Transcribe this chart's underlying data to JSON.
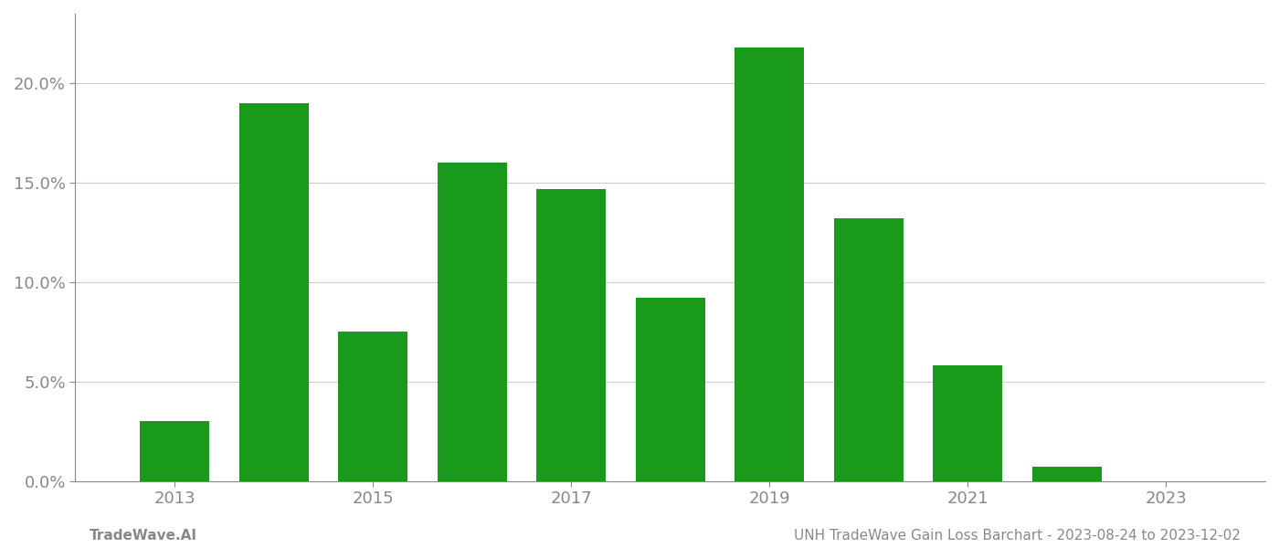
{
  "years": [
    2013,
    2014,
    2015,
    2016,
    2017,
    2018,
    2019,
    2020,
    2021,
    2022,
    2023
  ],
  "values": [
    0.03,
    0.19,
    0.075,
    0.16,
    0.147,
    0.092,
    0.218,
    0.132,
    0.058,
    0.007,
    0.0
  ],
  "bar_color": "#1a9a1a",
  "background_color": "#ffffff",
  "grid_color": "#cccccc",
  "axis_color": "#888888",
  "tick_color": "#888888",
  "footer_left": "TradeWave.AI",
  "footer_right": "UNH TradeWave Gain Loss Barchart - 2023-08-24 to 2023-12-02",
  "footer_color": "#888888",
  "footer_fontsize": 11,
  "ylim": [
    0,
    0.235
  ],
  "yticks": [
    0.0,
    0.05,
    0.1,
    0.15,
    0.2
  ],
  "xtick_years": [
    2013,
    2015,
    2017,
    2019,
    2021,
    2023
  ],
  "xlim": [
    2012.0,
    2024.0
  ],
  "bar_width": 0.7
}
